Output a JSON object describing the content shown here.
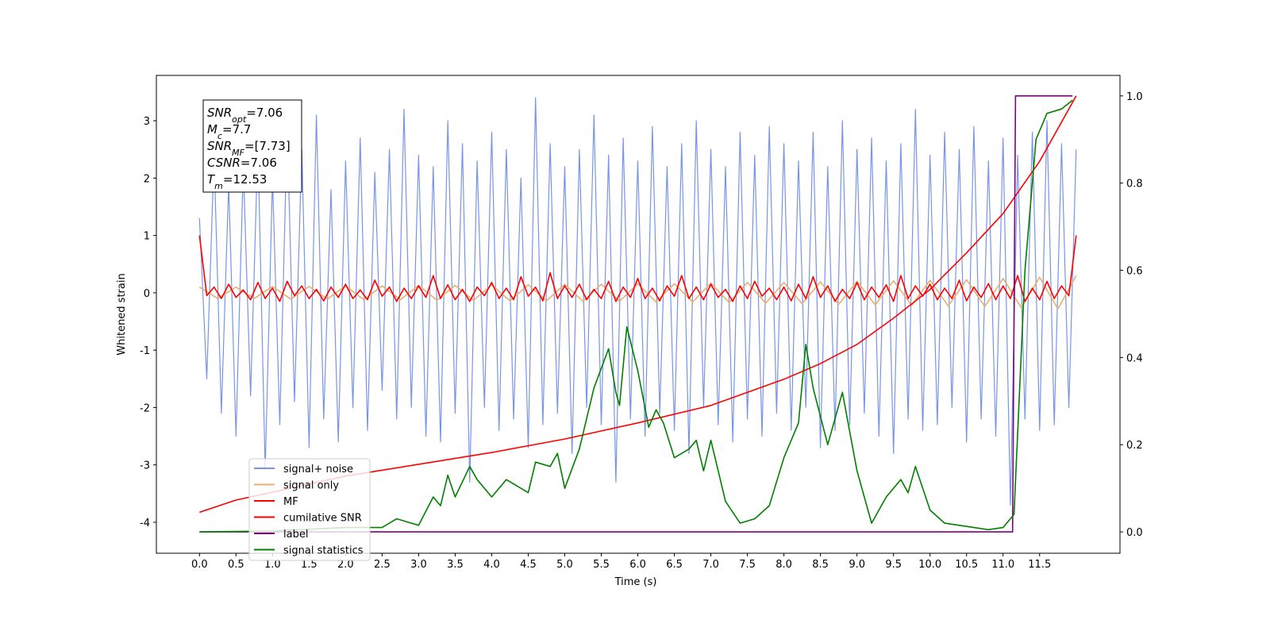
{
  "chart_data": {
    "type": "line",
    "xlabel": "Time (s)",
    "ylabel": "Whitened strain",
    "xlim": [
      -0.59,
      12.6
    ],
    "ylim": [
      -4.54,
      3.79
    ],
    "y2lim": [
      -0.049,
      1.047
    ],
    "xticks": [
      {
        "value": 0,
        "label": "0.0"
      },
      0.5,
      {
        "value": 1,
        "label": "1.0"
      },
      1.5,
      {
        "value": 2,
        "label": "2.0"
      },
      2.5,
      {
        "value": 3,
        "label": "3.0"
      },
      3.5,
      {
        "value": 4,
        "label": "4.0"
      },
      4.5,
      {
        "value": 5,
        "label": "5.0"
      },
      5.5,
      {
        "value": 6,
        "label": "6.0"
      },
      6.5,
      {
        "value": 7,
        "label": "7.0"
      },
      7.5,
      {
        "value": 8,
        "label": "8.0"
      },
      8.5,
      {
        "value": 9,
        "label": "9.0"
      },
      9.5,
      {
        "value": 10,
        "label": "10.0"
      },
      10.5,
      {
        "value": 11,
        "label": "11.0"
      },
      11.5
    ],
    "yticks": [
      -4,
      -3,
      -2,
      -1,
      0,
      1,
      2,
      3
    ],
    "y2ticks": [
      {
        "value": 0,
        "label": "0.0"
      },
      0.2,
      0.4,
      0.6,
      0.8,
      {
        "value": 1,
        "label": "1.0"
      }
    ],
    "annotations": [
      {
        "base": "SNR",
        "sub": "opt",
        "text": "=7.06"
      },
      {
        "base": "M",
        "sub": "c",
        "text": "=7.7"
      },
      {
        "base": "SNR",
        "sub": "MF",
        "text": "=[7.73]"
      },
      {
        "base": "CSNR",
        "text": "=7.06"
      },
      {
        "base": "T",
        "sub": "m",
        "text": "=12.53"
      }
    ],
    "x": [
      0,
      0.1,
      0.2,
      0.3,
      0.4,
      0.5,
      0.6,
      0.7,
      0.8,
      0.9,
      1,
      1.1,
      1.2,
      1.3,
      1.4,
      1.5,
      1.6,
      1.7,
      1.8,
      1.9,
      2,
      2.1,
      2.2,
      2.3,
      2.4,
      2.5,
      2.6,
      2.7,
      2.8,
      2.9,
      3,
      3.1,
      3.2,
      3.3,
      3.4,
      3.5,
      3.6,
      3.7,
      3.8,
      3.9,
      4,
      4.1,
      4.2,
      4.3,
      4.4,
      4.5,
      4.6,
      4.7,
      4.8,
      4.9,
      5,
      5.1,
      5.2,
      5.3,
      5.4,
      5.5,
      5.6,
      5.7,
      5.8,
      5.9,
      6,
      6.1,
      6.2,
      6.3,
      6.4,
      6.5,
      6.6,
      6.7,
      6.8,
      6.9,
      7,
      7.1,
      7.2,
      7.3,
      7.4,
      7.5,
      7.6,
      7.7,
      7.8,
      7.9,
      8,
      8.1,
      8.2,
      8.3,
      8.4,
      8.5,
      8.6,
      8.7,
      8.8,
      8.9,
      9,
      9.1,
      9.2,
      9.3,
      9.4,
      9.5,
      9.6,
      9.7,
      9.8,
      9.9,
      10,
      10.1,
      10.2,
      10.3,
      10.4,
      10.5,
      10.6,
      10.7,
      10.8,
      10.9,
      11,
      11.1,
      11.2,
      11.3,
      11.4,
      11.5,
      11.6,
      11.7,
      11.8,
      11.9,
      12
    ],
    "series": [
      {
        "name": "signal+ noise",
        "color": "#7894e8",
        "values": [
          1.3,
          -1.5,
          2.4,
          -2.1,
          1.9,
          -2.5,
          2.2,
          -1.8,
          2.6,
          -3.1,
          2.0,
          -2.3,
          2.9,
          -1.9,
          2.5,
          -2.7,
          3.1,
          -2.2,
          1.8,
          -2.6,
          2.3,
          -2.0,
          2.7,
          -2.4,
          2.1,
          -1.7,
          2.5,
          -2.2,
          3.2,
          -2.0,
          2.4,
          -2.5,
          2.2,
          -2.6,
          3.0,
          -2.1,
          2.6,
          -3.3,
          2.3,
          -2.0,
          2.8,
          -2.4,
          2.5,
          -2.2,
          2.0,
          -2.7,
          3.4,
          -2.3,
          2.6,
          -2.1,
          2.2,
          -2.8,
          2.5,
          -2.0,
          3.1,
          -2.3,
          2.4,
          -3.3,
          2.7,
          -2.2,
          2.3,
          -2.5,
          2.9,
          -2.1,
          2.2,
          -2.4,
          2.6,
          -2.8,
          3.0,
          -2.0,
          2.5,
          -2.3,
          2.2,
          -2.6,
          2.8,
          -2.2,
          2.4,
          -2.5,
          2.9,
          -2.1,
          2.6,
          -2.4,
          2.3,
          -2.0,
          2.8,
          -2.7,
          2.2,
          -2.4,
          3.0,
          -2.3,
          2.5,
          -2.1,
          2.7,
          -2.5,
          2.3,
          -2.8,
          2.6,
          -2.2,
          3.2,
          -2.4,
          2.4,
          -2.3,
          2.8,
          -2.0,
          2.5,
          -2.6,
          2.9,
          -2.2,
          2.3,
          -2.5,
          2.7,
          -3.7,
          2.4,
          -2.2,
          2.8,
          -2.4,
          3.0,
          -2.3,
          2.6,
          -2.0,
          2.5
        ]
      },
      {
        "name": "signal only",
        "color": "#e6b070",
        "x": [
          0,
          0.25,
          0.5,
          0.75,
          1,
          1.25,
          1.5,
          1.75,
          2,
          2.25,
          2.5,
          2.75,
          3,
          3.25,
          3.5,
          3.75,
          4,
          4.25,
          4.5,
          4.75,
          5,
          5.25,
          5.5,
          5.75,
          6,
          6.25,
          6.5,
          6.75,
          7,
          7.25,
          7.5,
          7.75,
          8,
          8.25,
          8.5,
          8.75,
          9,
          9.25,
          9.5,
          9.75,
          10,
          10.25,
          10.5,
          10.75,
          11,
          11.25,
          11.5,
          11.75,
          12
        ],
        "values": [
          0.1,
          -0.1,
          0.1,
          -0.1,
          0.11,
          -0.11,
          0.11,
          -0.11,
          0.12,
          -0.12,
          0.12,
          -0.12,
          0.13,
          -0.13,
          0.13,
          -0.13,
          0.14,
          -0.14,
          0.14,
          -0.14,
          0.15,
          -0.15,
          0.15,
          -0.15,
          0.16,
          -0.16,
          0.16,
          -0.16,
          0.17,
          -0.17,
          0.18,
          -0.18,
          0.18,
          -0.19,
          0.19,
          -0.2,
          0.2,
          -0.21,
          0.21,
          -0.22,
          0.22,
          -0.23,
          0.23,
          -0.24,
          0.25,
          -0.26,
          0.27,
          -0.28,
          0.3
        ]
      },
      {
        "name": "MF",
        "color": "#ff0000",
        "values": [
          1.0,
          -0.05,
          0.1,
          -0.1,
          0.15,
          -0.08,
          0.05,
          -0.12,
          0.18,
          -0.1,
          0.08,
          -0.15,
          0.2,
          -0.05,
          0.12,
          -0.1,
          0.06,
          -0.14,
          0.1,
          -0.08,
          0.15,
          -0.1,
          0.05,
          -0.12,
          0.22,
          -0.06,
          0.1,
          -0.15,
          0.08,
          -0.1,
          0.12,
          -0.08,
          0.3,
          -0.1,
          0.14,
          -0.12,
          0.06,
          -0.15,
          0.1,
          -0.05,
          0.18,
          -0.1,
          0.08,
          -0.12,
          0.28,
          -0.06,
          0.1,
          -0.14,
          0.35,
          -0.1,
          0.12,
          -0.08,
          0.15,
          -0.12,
          0.06,
          -0.1,
          0.2,
          -0.15,
          0.1,
          -0.08,
          0.25,
          -0.1,
          0.08,
          -0.14,
          0.12,
          -0.06,
          0.3,
          -0.1,
          0.1,
          -0.12,
          0.15,
          -0.08,
          0.06,
          -0.15,
          0.12,
          -0.1,
          0.2,
          -0.06,
          0.08,
          -0.12,
          0.1,
          -0.14,
          0.15,
          -0.1,
          0.28,
          -0.08,
          0.12,
          -0.15,
          0.06,
          -0.1,
          0.18,
          -0.12,
          0.1,
          -0.08,
          0.14,
          -0.15,
          0.3,
          -0.1,
          0.12,
          -0.06,
          0.15,
          -0.12,
          0.08,
          -0.1,
          0.22,
          -0.14,
          0.1,
          -0.08,
          0.16,
          -0.12,
          0.12,
          -0.1,
          0.3,
          -0.15,
          0.08,
          -0.12,
          0.2,
          -0.1,
          0.12,
          -0.05,
          1.0
        ]
      },
      {
        "name": "cumilative SNR",
        "color": "#ff0000",
        "axis": "y2",
        "x": [
          0,
          0.5,
          1,
          1.5,
          2,
          3,
          4,
          5,
          6,
          7,
          8,
          8.5,
          9,
          9.5,
          10,
          10.5,
          11,
          11.5,
          12
        ],
        "values": [
          0.045,
          0.073,
          0.091,
          0.11,
          0.128,
          0.155,
          0.182,
          0.213,
          0.25,
          0.29,
          0.35,
          0.386,
          0.43,
          0.49,
          0.556,
          0.64,
          0.73,
          0.85,
          1.0
        ]
      },
      {
        "name": "label",
        "color": "#800080",
        "axis": "y2",
        "x": [
          0,
          11.13,
          11.17,
          11.95
        ],
        "values": [
          0,
          0,
          1,
          1
        ]
      },
      {
        "name": "signal statistics",
        "color": "#008000",
        "axis": "y2",
        "x": [
          0,
          1,
          2,
          2.5,
          2.7,
          3.0,
          3.2,
          3.3,
          3.4,
          3.5,
          3.7,
          3.8,
          4.0,
          4.2,
          4.3,
          4.5,
          4.6,
          4.8,
          4.9,
          5.0,
          5.2,
          5.4,
          5.6,
          5.7,
          5.75,
          5.85,
          6.0,
          6.15,
          6.25,
          6.35,
          6.5,
          6.7,
          6.8,
          6.9,
          7.0,
          7.2,
          7.4,
          7.6,
          7.8,
          8.0,
          8.2,
          8.3,
          8.4,
          8.6,
          8.8,
          9.0,
          9.2,
          9.4,
          9.6,
          9.7,
          9.8,
          10.0,
          10.2,
          10.6,
          10.8,
          11.0,
          11.15,
          11.3,
          11.45,
          11.6,
          11.8,
          11.95
        ],
        "values": [
          0,
          0.002,
          0.01,
          0.01,
          0.03,
          0.015,
          0.08,
          0.06,
          0.13,
          0.08,
          0.15,
          0.12,
          0.08,
          0.12,
          0.11,
          0.09,
          0.16,
          0.15,
          0.18,
          0.1,
          0.19,
          0.33,
          0.42,
          0.32,
          0.29,
          0.47,
          0.37,
          0.24,
          0.28,
          0.25,
          0.17,
          0.19,
          0.21,
          0.14,
          0.21,
          0.07,
          0.02,
          0.03,
          0.06,
          0.17,
          0.25,
          0.43,
          0.33,
          0.2,
          0.32,
          0.14,
          0.02,
          0.08,
          0.12,
          0.09,
          0.15,
          0.05,
          0.02,
          0.01,
          0.005,
          0.01,
          0.04,
          0.6,
          0.9,
          0.96,
          0.97,
          0.99
        ]
      }
    ]
  }
}
